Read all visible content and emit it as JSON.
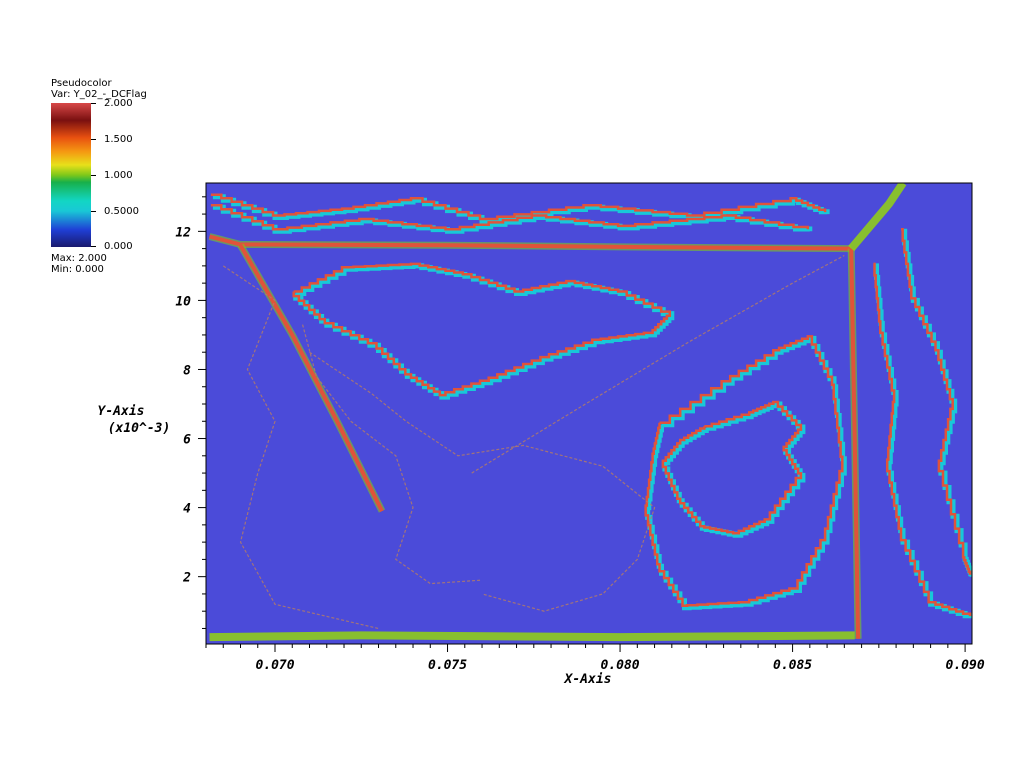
{
  "legend": {
    "title": "Pseudocolor",
    "var_label": "Var: Y_02_-_DCFlag",
    "ticks": [
      "2.000",
      "1.500",
      "1.000",
      "0.5000",
      "0.000"
    ],
    "tick_values": [
      2.0,
      1.5,
      1.0,
      0.5,
      0.0
    ],
    "max_label": "Max:  2.000",
    "min_label": "Min:  0.000",
    "colormap": [
      "#1a1a6e",
      "#1f3fd6",
      "#19c8d6",
      "#12d6c4",
      "#18b04a",
      "#7fc81a",
      "#e8e01a",
      "#f59a12",
      "#e85010",
      "#7a1010",
      "#d84848"
    ]
  },
  "chart_data": {
    "type": "heatmap",
    "title": "",
    "xlabel": "X-Axis",
    "ylabel": "Y-Axis",
    "ylabel_unit": "(x10^-3)",
    "xlim": [
      0.068,
      0.0902
    ],
    "ylim": [
      0.05,
      13.4
    ],
    "x_ticks": [
      0.07,
      0.075,
      0.08,
      0.085,
      0.09
    ],
    "x_tick_labels": [
      "0.070",
      "0.075",
      "0.080",
      "0.085",
      "0.090"
    ],
    "y_ticks": [
      2,
      4,
      6,
      8,
      10,
      12
    ],
    "y_tick_labels": [
      "2",
      "4",
      "6",
      "8",
      "10",
      "12"
    ],
    "value_range": [
      0.0,
      2.0
    ],
    "background_value": 0.2,
    "colors": {
      "background": "#4b4bd9",
      "front": "#e0533a",
      "front_inner": "#18c8d8",
      "partial": "#8fcc1c",
      "thin": "#b07a6a"
    },
    "features": [
      {
        "kind": "front",
        "name": "top-edge",
        "points": [
          [
            0.0681,
            11.85
          ],
          [
            0.069,
            11.62
          ],
          [
            0.075,
            11.6
          ],
          [
            0.08,
            11.55
          ],
          [
            0.0867,
            11.5
          ]
        ]
      },
      {
        "kind": "front",
        "name": "right-vertical",
        "points": [
          [
            0.0867,
            11.5
          ],
          [
            0.0868,
            6.0
          ],
          [
            0.0869,
            0.2
          ]
        ]
      },
      {
        "kind": "front",
        "name": "diagonal-crack",
        "points": [
          [
            0.069,
            11.6
          ],
          [
            0.0705,
            9.0
          ],
          [
            0.0718,
            6.5
          ],
          [
            0.0731,
            3.9
          ]
        ]
      },
      {
        "kind": "stair",
        "name": "upper-saw",
        "points": [
          [
            0.0682,
            13.0
          ],
          [
            0.07,
            12.4
          ],
          [
            0.072,
            12.6
          ],
          [
            0.074,
            12.9
          ],
          [
            0.076,
            12.3
          ],
          [
            0.079,
            12.7
          ],
          [
            0.082,
            12.4
          ],
          [
            0.085,
            12.9
          ],
          [
            0.086,
            12.5
          ]
        ]
      },
      {
        "kind": "stair",
        "name": "upper-saw-2",
        "points": [
          [
            0.0682,
            12.7
          ],
          [
            0.07,
            12.0
          ],
          [
            0.0725,
            12.3
          ],
          [
            0.075,
            12.0
          ],
          [
            0.0775,
            12.4
          ],
          [
            0.08,
            12.1
          ],
          [
            0.083,
            12.4
          ],
          [
            0.0855,
            12.0
          ]
        ]
      },
      {
        "kind": "stair",
        "name": "inner-triangle",
        "points": [
          [
            0.0706,
            10.2
          ],
          [
            0.072,
            10.9
          ],
          [
            0.074,
            11.0
          ],
          [
            0.0755,
            10.7
          ],
          [
            0.077,
            10.2
          ],
          [
            0.0785,
            10.5
          ],
          [
            0.08,
            10.2
          ],
          [
            0.0815,
            9.5
          ],
          [
            0.081,
            9.0
          ],
          [
            0.0795,
            8.8
          ],
          [
            0.078,
            8.3
          ],
          [
            0.0765,
            7.7
          ],
          [
            0.075,
            7.2
          ],
          [
            0.074,
            7.8
          ],
          [
            0.073,
            8.7
          ],
          [
            0.0715,
            9.4
          ],
          [
            0.0706,
            10.2
          ]
        ]
      },
      {
        "kind": "stair",
        "name": "cross-shape",
        "points": [
          [
            0.0825,
            6.3
          ],
          [
            0.0838,
            6.7
          ],
          [
            0.0845,
            7.0
          ],
          [
            0.0853,
            6.2
          ],
          [
            0.0848,
            5.6
          ],
          [
            0.0853,
            4.8
          ],
          [
            0.0844,
            3.6
          ],
          [
            0.0835,
            3.2
          ],
          [
            0.0825,
            3.4
          ],
          [
            0.0818,
            4.2
          ],
          [
            0.0813,
            5.3
          ],
          [
            0.0818,
            5.9
          ],
          [
            0.0825,
            6.3
          ]
        ]
      },
      {
        "kind": "stair",
        "name": "cross-outer",
        "points": [
          [
            0.0812,
            6.4
          ],
          [
            0.083,
            7.6
          ],
          [
            0.0845,
            8.5
          ],
          [
            0.0855,
            8.9
          ],
          [
            0.0862,
            7.5
          ],
          [
            0.0865,
            5.0
          ],
          [
            0.086,
            3.0
          ],
          [
            0.0852,
            1.6
          ],
          [
            0.0838,
            1.2
          ],
          [
            0.082,
            1.1
          ],
          [
            0.0812,
            2.3
          ],
          [
            0.0808,
            4.0
          ],
          [
            0.081,
            5.5
          ],
          [
            0.0812,
            6.4
          ]
        ]
      },
      {
        "kind": "stair",
        "name": "right-zig",
        "points": [
          [
            0.0882,
            12.0
          ],
          [
            0.0885,
            10.0
          ],
          [
            0.0892,
            8.5
          ],
          [
            0.0897,
            6.8
          ],
          [
            0.0893,
            5.0
          ],
          [
            0.09,
            2.5
          ],
          [
            0.0902,
            2.0
          ]
        ]
      },
      {
        "kind": "stair",
        "name": "right-zig-2",
        "points": [
          [
            0.0874,
            11.0
          ],
          [
            0.0876,
            9.0
          ],
          [
            0.088,
            7.0
          ],
          [
            0.0878,
            5.0
          ],
          [
            0.0882,
            3.0
          ],
          [
            0.089,
            1.2
          ],
          [
            0.0902,
            0.8
          ]
        ]
      },
      {
        "kind": "partial",
        "name": "top-right-band",
        "points": [
          [
            0.0867,
            11.5
          ],
          [
            0.0878,
            12.8
          ],
          [
            0.0882,
            13.4
          ]
        ]
      },
      {
        "kind": "partial",
        "name": "bottom-debris",
        "points": [
          [
            0.0681,
            0.25
          ],
          [
            0.0725,
            0.3
          ],
          [
            0.08,
            0.25
          ],
          [
            0.0868,
            0.3
          ]
        ]
      },
      {
        "kind": "thin",
        "name": "lower-left-outline",
        "points": [
          [
            0.0685,
            11.0
          ],
          [
            0.07,
            10.0
          ],
          [
            0.0692,
            8.0
          ],
          [
            0.07,
            6.5
          ],
          [
            0.0695,
            5.0
          ],
          [
            0.069,
            3.0
          ],
          [
            0.07,
            1.2
          ],
          [
            0.073,
            0.5
          ]
        ]
      },
      {
        "kind": "thin",
        "name": "mid-outline",
        "points": [
          [
            0.071,
            8.5
          ],
          [
            0.0728,
            7.3
          ],
          [
            0.0738,
            6.5
          ],
          [
            0.0753,
            5.5
          ],
          [
            0.0772,
            5.8
          ],
          [
            0.0795,
            5.2
          ],
          [
            0.081,
            4.0
          ],
          [
            0.0805,
            2.5
          ],
          [
            0.0795,
            1.5
          ],
          [
            0.0778,
            1.0
          ],
          [
            0.076,
            1.5
          ]
        ]
      },
      {
        "kind": "thin",
        "name": "center-diagonal",
        "points": [
          [
            0.0757,
            5.0
          ],
          [
            0.079,
            7.0
          ],
          [
            0.082,
            8.8
          ],
          [
            0.085,
            10.5
          ],
          [
            0.0865,
            11.3
          ]
        ]
      },
      {
        "kind": "thin",
        "name": "inner-left-outline",
        "points": [
          [
            0.0708,
            9.3
          ],
          [
            0.0712,
            7.8
          ],
          [
            0.0722,
            6.5
          ],
          [
            0.0735,
            5.5
          ],
          [
            0.074,
            4.0
          ],
          [
            0.0735,
            2.5
          ],
          [
            0.0745,
            1.8
          ],
          [
            0.076,
            1.9
          ]
        ]
      }
    ]
  }
}
